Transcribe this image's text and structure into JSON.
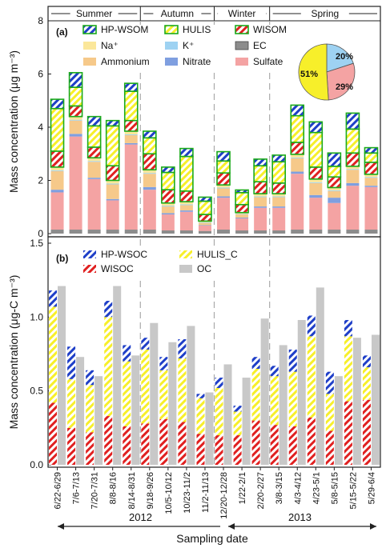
{
  "colors": {
    "sulfate": "#f4a3a3",
    "nitrate": "#7f9fe0",
    "ammonium": "#f6c98a",
    "na": "#fbe79a",
    "k": "#9ed2f2",
    "ec": "#8c8c8c",
    "wisom": "#e02020",
    "hulis": "#f7ef2a",
    "hpwsom": "#1f3fc8",
    "green": "#1aaa1a",
    "wisoc": "#e02020",
    "hulisc": "#f7ef2a",
    "hpwsoc": "#1f3fc8",
    "oc": "#c8c8c8"
  },
  "chart_data": [
    {
      "type": "bar",
      "panel_label": "(a)",
      "ylabel": "Mass concentration (μg m⁻³)",
      "ylim": [
        0,
        8
      ],
      "yticks": [
        0,
        2,
        4,
        6,
        8
      ],
      "seasons": [
        "Summer",
        "Autumn",
        "Winter",
        "Spring"
      ],
      "legend": [
        {
          "key": "hpwsom",
          "label": "HP-WSOM"
        },
        {
          "key": "hulis",
          "label": "HULIS"
        },
        {
          "key": "wisom",
          "label": "WISOM"
        },
        {
          "key": "na",
          "label": "Na⁺"
        },
        {
          "key": "k",
          "label": "K⁺"
        },
        {
          "key": "ec",
          "label": "EC"
        },
        {
          "key": "ammonium",
          "label": "Ammonium"
        },
        {
          "key": "nitrate",
          "label": "Nitrate"
        },
        {
          "key": "sulfate",
          "label": "Sulfate"
        }
      ],
      "series": [
        {
          "key": "ec",
          "values": [
            0.15,
            0.15,
            0.15,
            0.15,
            0.15,
            0.15,
            0.12,
            0.12,
            0.1,
            0.15,
            0.12,
            0.12,
            0.12,
            0.15,
            0.15,
            0.15,
            0.15,
            0.15
          ]
        },
        {
          "key": "sulfate",
          "values": [
            1.4,
            3.5,
            1.9,
            1.1,
            3.2,
            1.5,
            0.6,
            0.7,
            0.2,
            1.2,
            0.45,
            0.85,
            0.85,
            2.1,
            1.2,
            1.0,
            1.65,
            1.6
          ]
        },
        {
          "key": "nitrate",
          "values": [
            0.1,
            0.1,
            0.05,
            0.05,
            0.05,
            0.1,
            0.05,
            0.05,
            0.02,
            0.05,
            0.03,
            0.05,
            0.05,
            0.08,
            0.1,
            0.2,
            0.1,
            0.05
          ]
        },
        {
          "key": "ammonium",
          "values": [
            0.7,
            0.5,
            0.6,
            0.55,
            0.3,
            0.5,
            0.25,
            0.2,
            0.08,
            0.3,
            0.12,
            0.35,
            0.35,
            0.5,
            0.45,
            0.25,
            0.5,
            0.3
          ]
        },
        {
          "key": "k",
          "values": [
            0.03,
            0.03,
            0.03,
            0.03,
            0.03,
            0.03,
            0.03,
            0.03,
            0.02,
            0.03,
            0.02,
            0.03,
            0.03,
            0.03,
            0.03,
            0.03,
            0.03,
            0.03
          ]
        },
        {
          "key": "na",
          "values": [
            0.12,
            0.12,
            0.12,
            0.12,
            0.12,
            0.12,
            0.1,
            0.1,
            0.05,
            0.1,
            0.05,
            0.1,
            0.1,
            0.12,
            0.12,
            0.1,
            0.1,
            0.1
          ]
        },
        {
          "key": "wisom",
          "values": [
            0.6,
            0.4,
            0.4,
            0.55,
            0.4,
            0.6,
            0.5,
            0.4,
            0.25,
            0.45,
            0.3,
            0.45,
            0.4,
            0.45,
            0.45,
            0.4,
            0.5,
            0.45
          ]
        },
        {
          "key": "hulis",
          "values": [
            1.6,
            0.7,
            0.8,
            1.5,
            1.1,
            0.6,
            0.65,
            1.3,
            0.5,
            0.45,
            0.45,
            0.6,
            0.8,
            1.0,
            1.3,
            0.4,
            0.9,
            0.35
          ]
        },
        {
          "key": "hpwsom",
          "values": [
            0.35,
            0.55,
            0.35,
            0.2,
            0.3,
            0.25,
            0.2,
            0.3,
            0.15,
            0.35,
            0.1,
            0.25,
            0.25,
            0.4,
            0.4,
            0.5,
            0.6,
            0.2
          ]
        }
      ],
      "pie": {
        "slices": [
          {
            "key": "hulis",
            "value": 51,
            "label": "51%"
          },
          {
            "key": "sulfate",
            "value": 29,
            "label": "29%"
          },
          {
            "key": "k",
            "value": 20,
            "label": "20%"
          }
        ]
      }
    },
    {
      "type": "bar",
      "panel_label": "(b)",
      "ylabel": "Mass concentration (μg-C m⁻³)",
      "xlabel": "Sampling date",
      "ylim": [
        0,
        1.5
      ],
      "yticks": [
        0.0,
        0.5,
        1.0,
        1.5
      ],
      "ytick_labels": [
        "0.0",
        "0.5",
        "1.0",
        "1.5"
      ],
      "categories": [
        "6/22-6/29",
        "7/6-7/13",
        "7/20-7/31",
        "8/8-8/16",
        "8/14-8/31",
        "9/18-9/26",
        "10/5-10/12",
        "10/23-11/2",
        "11/2-11/13",
        "12/20-12/28",
        "1/22-2/1",
        "2/20-2/27",
        "3/8-3/15",
        "4/3-4/12",
        "4/23-5/1",
        "5/8-5/15",
        "5/15-5/22",
        "5/29-6/4"
      ],
      "legend": [
        {
          "key": "hpwsoc",
          "label": "HP-WSOC"
        },
        {
          "key": "hulisc",
          "label": "HULIS_C"
        },
        {
          "key": "wisoc",
          "label": "WISOC"
        },
        {
          "key": "oc",
          "label": "OC"
        }
      ],
      "wisoc": [
        0.42,
        0.25,
        0.22,
        0.33,
        0.26,
        0.28,
        0.31,
        0.29,
        0.21,
        0.2,
        0.2,
        0.3,
        0.27,
        0.26,
        0.32,
        0.23,
        0.43,
        0.44
      ],
      "hulisc": [
        0.65,
        0.33,
        0.32,
        0.67,
        0.44,
        0.5,
        0.33,
        0.43,
        0.24,
        0.32,
        0.16,
        0.35,
        0.33,
        0.37,
        0.55,
        0.25,
        0.44,
        0.22
      ],
      "hpwsoc": [
        0.11,
        0.22,
        0.1,
        0.11,
        0.11,
        0.08,
        0.09,
        0.13,
        0.03,
        0.07,
        0.04,
        0.08,
        0.07,
        0.15,
        0.14,
        0.15,
        0.11,
        0.08
      ],
      "oc": [
        1.21,
        0.73,
        0.6,
        1.21,
        0.74,
        0.96,
        0.83,
        0.94,
        0.49,
        0.68,
        0.59,
        0.99,
        0.81,
        0.98,
        1.2,
        0.6,
        0.86,
        0.88
      ],
      "years": [
        "2012",
        "2013"
      ]
    }
  ]
}
